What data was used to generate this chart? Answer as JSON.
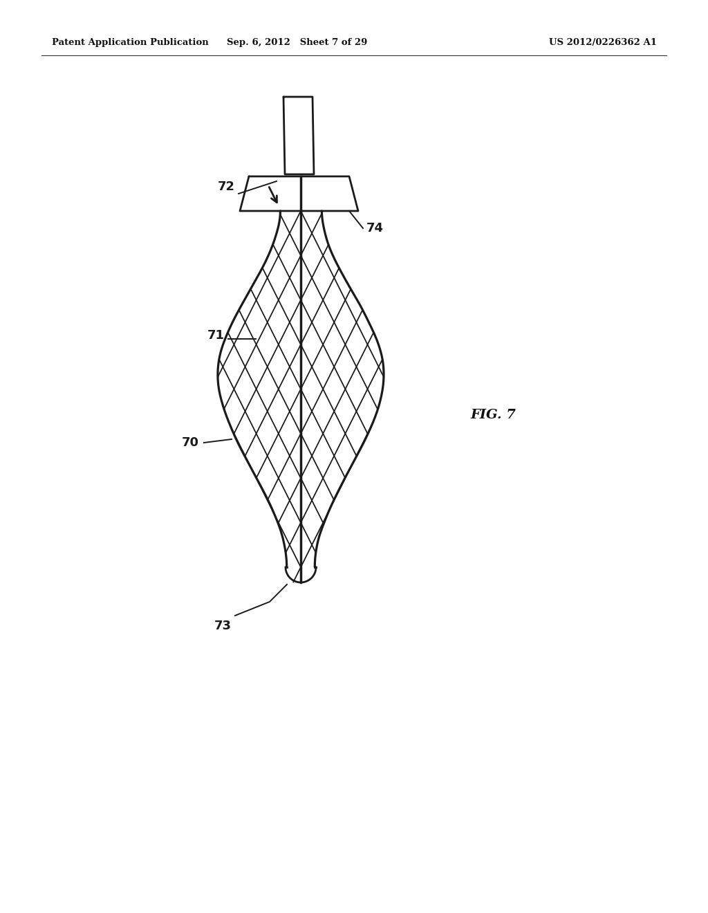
{
  "bg_color": "#ffffff",
  "line_color": "#1a1a1a",
  "lw_main": 2.0,
  "lw_inner": 1.5,
  "lw_label": 1.2,
  "header_left": "Patent Application Publication",
  "header_center": "Sep. 6, 2012   Sheet 7 of 29",
  "header_right": "US 2012/0226362 A1",
  "fig_label": "FIG. 7"
}
